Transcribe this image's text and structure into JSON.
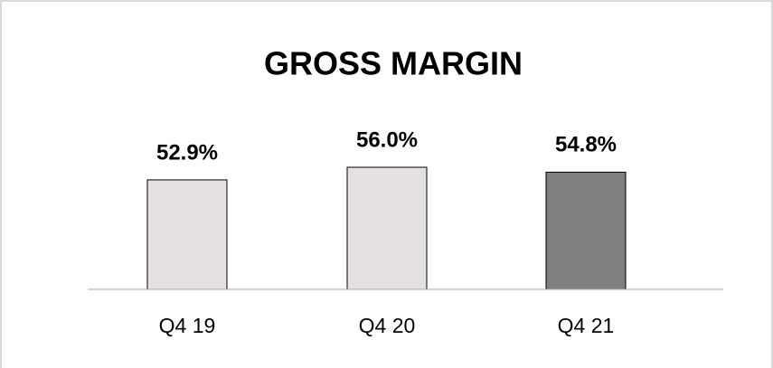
{
  "chart_data": {
    "type": "bar",
    "title": "GROSS MARGIN",
    "categories": [
      "Q4 19",
      "Q4 20",
      "Q4 21"
    ],
    "values": [
      52.9,
      56.0,
      54.8
    ],
    "value_labels": [
      "52.9%",
      "56.0%",
      "54.8%"
    ],
    "colors": [
      "#e6e1e1",
      "#e6e1e1",
      "#7f7f7f"
    ],
    "ylim": [
      26,
      65
    ]
  }
}
